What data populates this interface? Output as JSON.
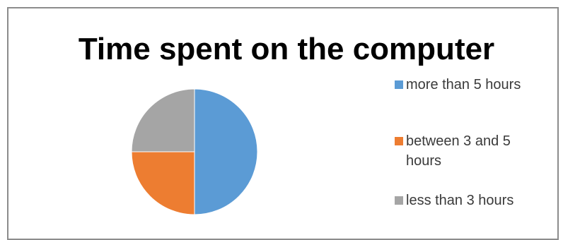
{
  "chart_data": {
    "type": "pie",
    "title": "Time spent on the computer",
    "categories": [
      "more than 5 hours",
      "between 3 and 5 hours",
      "less than 3 hours"
    ],
    "values": [
      50,
      25,
      25
    ],
    "colors": [
      "#5b9bd5",
      "#ed7d31",
      "#a5a5a5"
    ],
    "legend_position": "right"
  }
}
